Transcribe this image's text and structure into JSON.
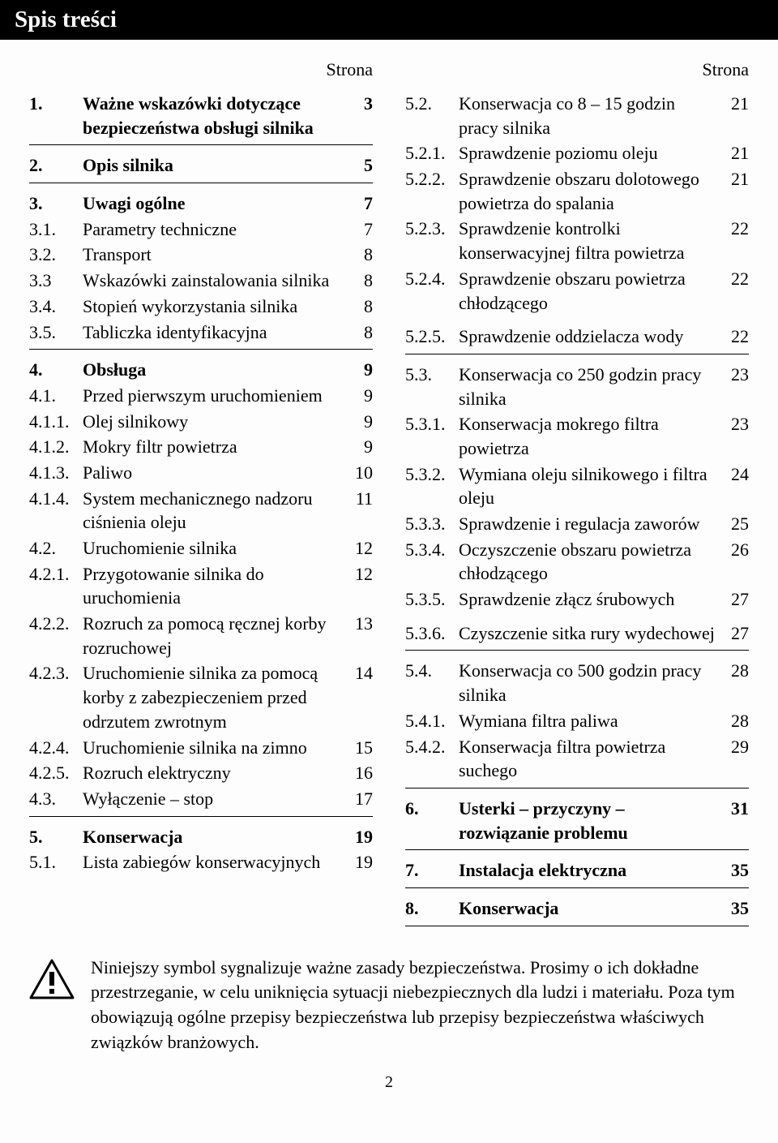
{
  "title": "Spis treści",
  "page_label": "Strona",
  "page_number": "2",
  "note": "Niniejszy symbol sygnalizuje ważne zasady bezpieczeństwa. Prosimy o ich dokładne przestrzeganie, w celu uniknięcia sytuacji niebezpiecznych dla ludzi i materiału. Poza tym obowiązują ogólne przepisy bezpieczeństwa lub przepisy bezpieczeństwa właściwych związków branżowych.",
  "left": [
    {
      "bold": true,
      "num": "1.",
      "text": "Ważne wskazówki dotyczące bezpieczeństwa obsługi silnika",
      "page": "3",
      "rule": true
    },
    {
      "bold": true,
      "num": "2.",
      "text": "Opis silnika",
      "page": "5",
      "rule": true
    },
    {
      "bold": true,
      "num": "3.",
      "text": "Uwagi ogólne",
      "page": "7"
    },
    {
      "bold": false,
      "num": "3.1.",
      "text": "Parametry techniczne",
      "page": "7"
    },
    {
      "bold": false,
      "num": "3.2.",
      "text": "Transport",
      "page": "8"
    },
    {
      "bold": false,
      "num": "3.3",
      "text": "Wskazówki zainstalowania silnika",
      "page": "8"
    },
    {
      "bold": false,
      "num": "3.4.",
      "text": "Stopień wykorzystania silnika",
      "page": "8"
    },
    {
      "bold": false,
      "num": "3.5.",
      "text": "Tabliczka identyfikacyjna",
      "page": "8",
      "rule": true
    },
    {
      "bold": true,
      "num": "4.",
      "text": "Obsługa",
      "page": "9"
    },
    {
      "bold": false,
      "num": "4.1.",
      "text": "Przed pierwszym uruchomieniem",
      "page": "9"
    },
    {
      "bold": false,
      "num": "4.1.1.",
      "text": "Olej silnikowy",
      "page": "9"
    },
    {
      "bold": false,
      "num": "4.1.2.",
      "text": "Mokry filtr powietrza",
      "page": "9"
    },
    {
      "bold": false,
      "num": "4.1.3.",
      "text": "Paliwo",
      "page": "10"
    },
    {
      "bold": false,
      "num": "4.1.4.",
      "text": "System mechanicznego nadzoru ciśnienia oleju",
      "page": "11"
    },
    {
      "bold": false,
      "num": "4.2.",
      "text": "Uruchomienie silnika",
      "page": "12"
    },
    {
      "bold": false,
      "num": "4.2.1.",
      "text": "Przygotowanie silnika do uruchomienia",
      "page": "12"
    },
    {
      "bold": false,
      "num": "4.2.2.",
      "text": "Rozruch za pomocą ręcznej korby rozruchowej",
      "page": "13"
    },
    {
      "bold": false,
      "num": "4.2.3.",
      "text": "Uruchomienie silnika za pomocą korby z zabezpieczeniem przed odrzutem zwrotnym",
      "page": "14"
    },
    {
      "bold": false,
      "num": "4.2.4.",
      "text": "Uruchomienie silnika na zimno",
      "page": "15"
    },
    {
      "bold": false,
      "num": "4.2.5.",
      "text": "Rozruch elektryczny",
      "page": "16"
    },
    {
      "bold": false,
      "num": "4.3.",
      "text": "Wyłączenie – stop",
      "page": "17",
      "rule": true
    },
    {
      "bold": true,
      "num": "5.",
      "text": "Konserwacja",
      "page": "19"
    },
    {
      "bold": false,
      "num": "5.1.",
      "text": "Lista zabiegów konserwacyjnych",
      "page": "19"
    }
  ],
  "right": [
    {
      "bold": false,
      "num": "5.2.",
      "text": "Konserwacja co 8 – 15 godzin pracy silnika",
      "page": "21"
    },
    {
      "bold": false,
      "num": "5.2.1.",
      "text": "Sprawdzenie poziomu oleju",
      "page": "21"
    },
    {
      "bold": false,
      "num": "5.2.2.",
      "text": "Sprawdzenie obszaru dolotowego powietrza do spalania",
      "page": "21"
    },
    {
      "bold": false,
      "num": "5.2.3.",
      "text": "Sprawdzenie kontrolki konserwacyjnej filtra powietrza",
      "page": "22"
    },
    {
      "bold": false,
      "num": "5.2.4.",
      "text": "Sprawdzenie obszaru powietrza chłodzącego",
      "page": "22"
    },
    {
      "bold": false,
      "num": "5.2.5.",
      "text": "Sprawdzenie oddzielacza wody",
      "page": "22",
      "rule": true,
      "gap": true
    },
    {
      "bold": false,
      "num": "5.3.",
      "text": "Konserwacja co 250 godzin pracy silnika",
      "page": "23"
    },
    {
      "bold": false,
      "num": "5.3.1.",
      "text": "Konserwacja mokrego filtra powietrza",
      "page": "23"
    },
    {
      "bold": false,
      "num": "5.3.2.",
      "text": "Wymiana oleju silnikowego i filtra oleju",
      "page": "24"
    },
    {
      "bold": false,
      "num": "5.3.3.",
      "text": "Sprawdzenie i regulacja zaworów",
      "page": "25"
    },
    {
      "bold": false,
      "num": "5.3.4.",
      "text": "Oczyszczenie obszaru powietrza chłodzącego",
      "page": "26"
    },
    {
      "bold": false,
      "num": "5.3.5.",
      "text": "Sprawdzenie złącz śrubowych",
      "page": "27"
    },
    {
      "bold": false,
      "num": "5.3.6.",
      "text": "Czyszczenie sitka rury wydechowej",
      "page": "27",
      "rule": true,
      "gap": true
    },
    {
      "bold": false,
      "num": "5.4.",
      "text": "Konserwacja co 500 godzin pracy silnika",
      "page": "28"
    },
    {
      "bold": false,
      "num": "5.4.1.",
      "text": "Wymiana filtra paliwa",
      "page": "28"
    },
    {
      "bold": false,
      "num": "5.4.2.",
      "text": "Konserwacja filtra powietrza suchego",
      "page": "29",
      "rule": true
    },
    {
      "bold": true,
      "num": "6.",
      "text": "Usterki – przyczyny – rozwiązanie problemu",
      "page": "31",
      "rule": true
    },
    {
      "bold": true,
      "num": "7.",
      "text": "Instalacja elektryczna",
      "page": "35",
      "rule": true
    },
    {
      "bold": true,
      "num": "8.",
      "text": "Konserwacja",
      "page": "35",
      "rule": true
    }
  ]
}
